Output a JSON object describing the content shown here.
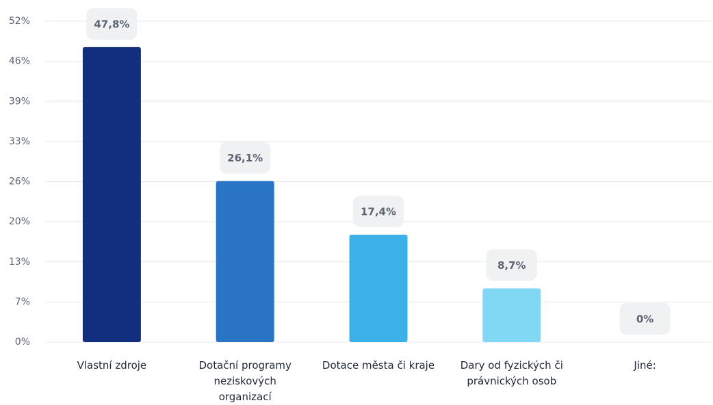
{
  "chart_data": {
    "type": "bar",
    "categories": [
      "Vlastní zdroje",
      "Dotační programy neziskových organizací",
      "Dotace města či kraje",
      "Dary od fyzických či právnických osob",
      "Jiné:"
    ],
    "values": [
      47.8,
      26.1,
      17.4,
      8.7,
      0
    ],
    "value_labels": [
      "47,8%",
      "26,1%",
      "17,4%",
      "8,7%",
      "0%"
    ],
    "colors": [
      "#122e7f",
      "#2a74c5",
      "#3bb0e9",
      "#80d8f5",
      "#b8e9fa"
    ],
    "ylim": [
      0,
      52
    ],
    "yticks": [
      {
        "value": 0,
        "label": "0%"
      },
      {
        "value": 6.5,
        "label": "7%"
      },
      {
        "value": 13,
        "label": "13%"
      },
      {
        "value": 19.5,
        "label": "20%"
      },
      {
        "value": 26,
        "label": "26%"
      },
      {
        "value": 32.5,
        "label": "33%"
      },
      {
        "value": 39,
        "label": "39%"
      },
      {
        "value": 45.5,
        "label": "46%"
      },
      {
        "value": 52,
        "label": "52%"
      }
    ],
    "grid": true
  }
}
